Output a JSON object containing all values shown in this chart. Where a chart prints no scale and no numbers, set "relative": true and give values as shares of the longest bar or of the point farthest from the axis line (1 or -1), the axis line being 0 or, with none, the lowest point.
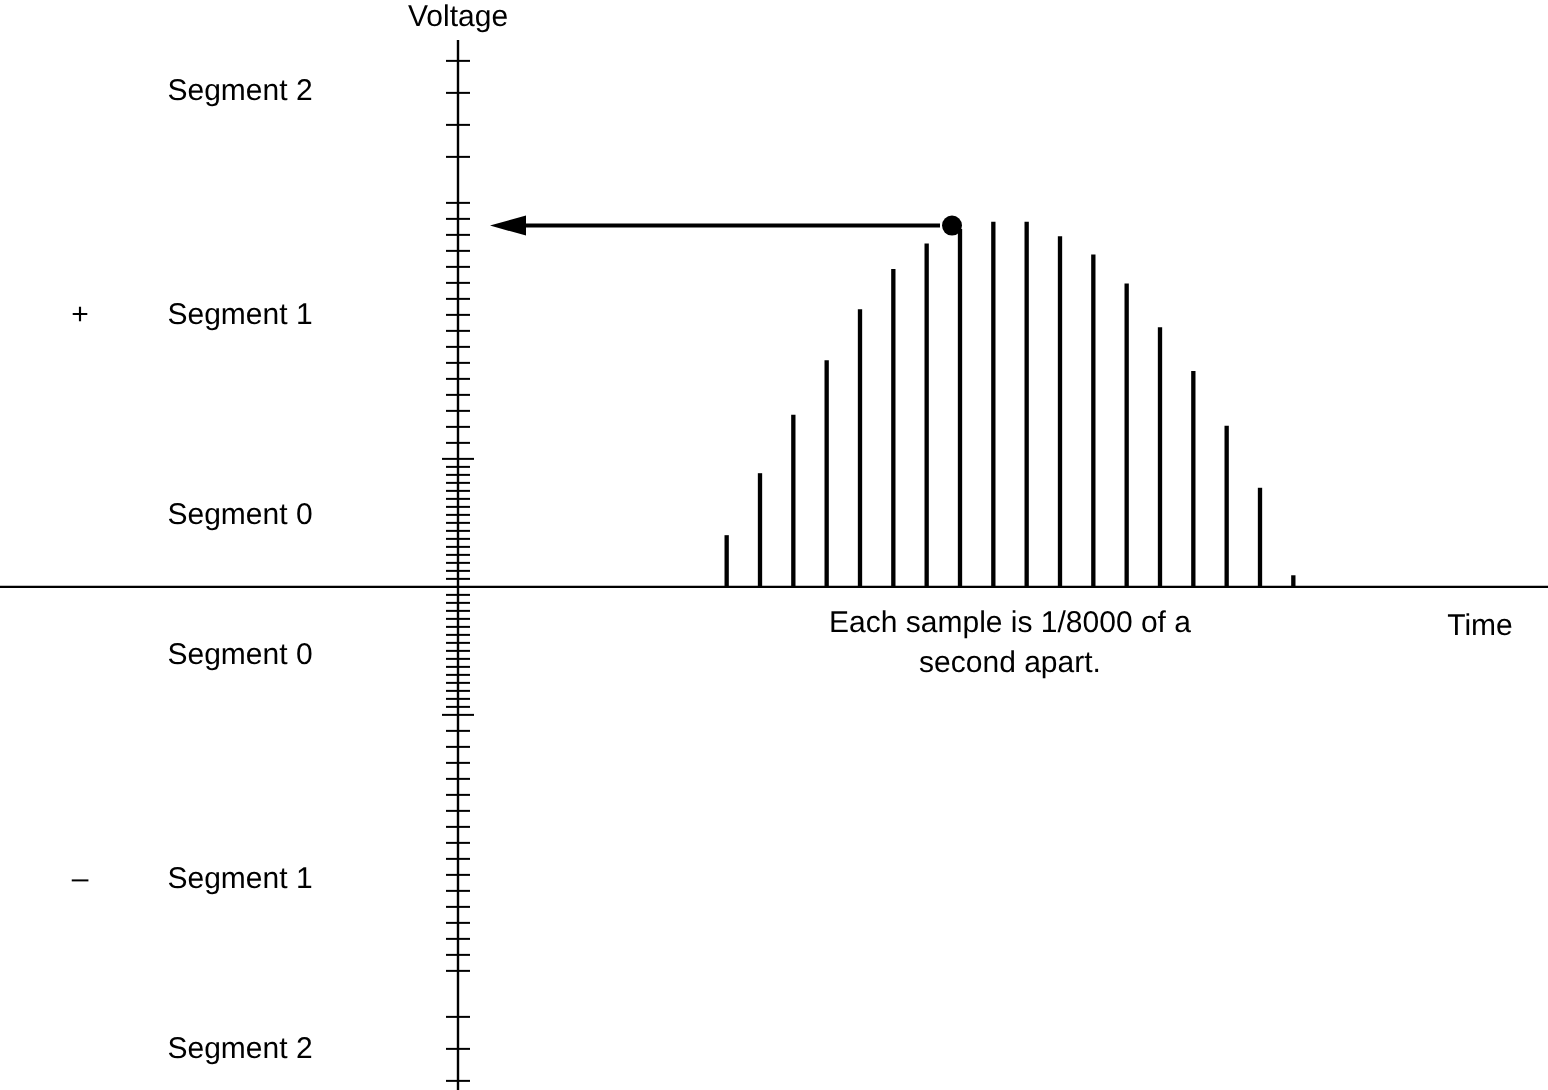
{
  "chart_data": {
    "type": "bar",
    "relative": true,
    "xlabel": "Time",
    "color": "#000000",
    "categories": [
      null,
      null,
      null,
      null,
      null,
      null,
      null,
      null,
      null,
      null,
      null,
      null,
      null,
      null,
      null,
      null,
      null,
      null
    ],
    "values": [
      0.14,
      0.31,
      0.47,
      0.62,
      0.76,
      0.87,
      0.94,
      0.98,
      1,
      1,
      0.96,
      0.91,
      0.83,
      0.71,
      0.59,
      0.44,
      0.27,
      0.03
    ],
    "annotations": [
      "Segment 2",
      "Segment 1",
      "Segment 0",
      "Segment 0",
      "Segment 1",
      "Segment 2",
      "+",
      "–",
      "Each sample is 1/8000 of a second apart.",
      "Voltage"
    ]
  }
}
